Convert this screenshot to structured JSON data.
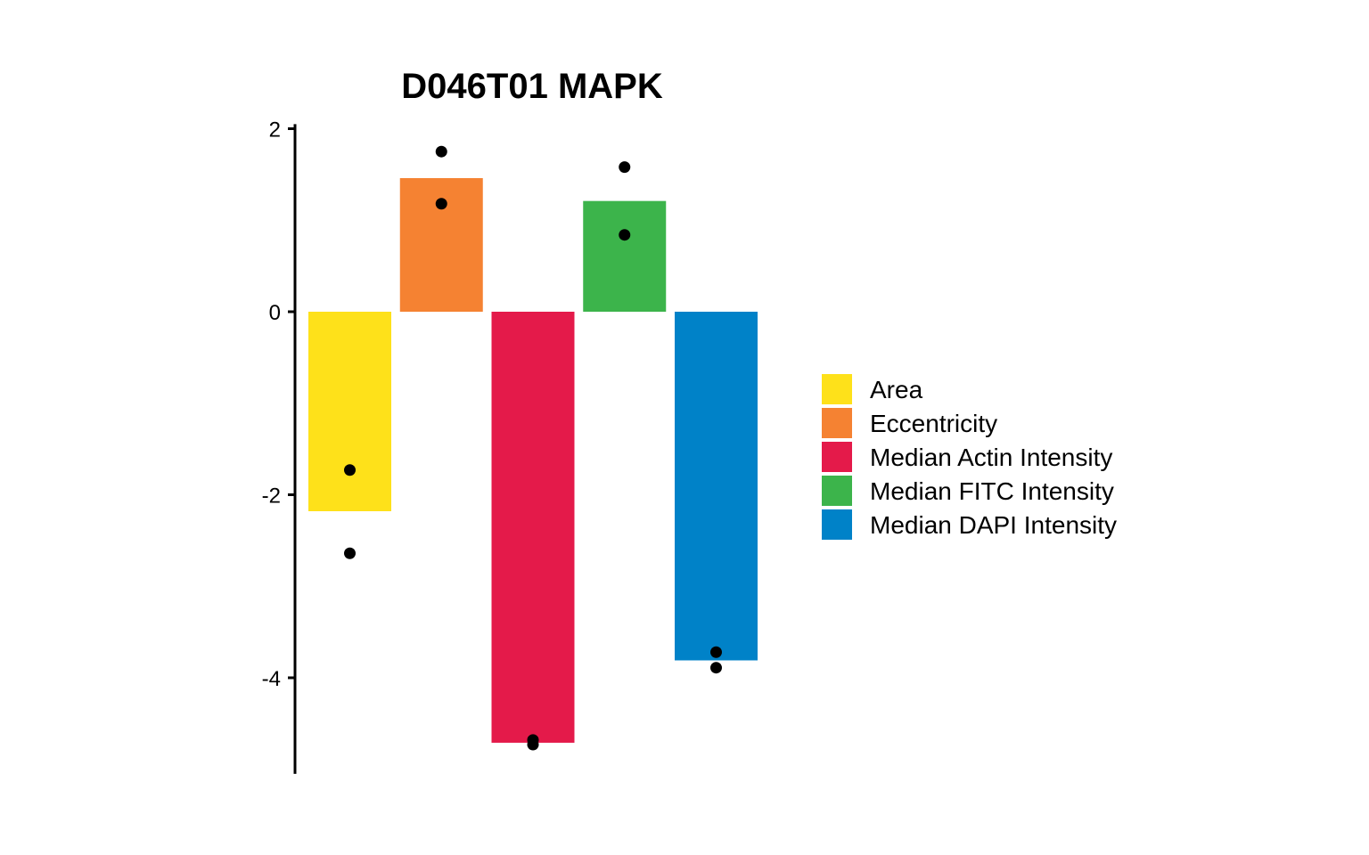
{
  "chart_data": {
    "type": "bar",
    "title": "D046T01 MAPK",
    "xlabel": "",
    "ylabel": "",
    "ylim": [
      -5.05,
      2.05
    ],
    "yticks": [
      2,
      0,
      -2,
      -4
    ],
    "ytick_labels": [
      "2",
      "0",
      "-2",
      "-4"
    ],
    "grid": false,
    "legend_position": "right",
    "categories": [
      "Area",
      "Eccentricity",
      "Median Actin Intensity",
      "Median FITC Intensity",
      "Median DAPI Intensity"
    ],
    "values": [
      -2.18,
      1.46,
      -4.71,
      1.21,
      -3.81
    ],
    "colors": [
      "#FEE11A",
      "#F58232",
      "#E41A4A",
      "#3CB44B",
      "#0082C8"
    ],
    "points": [
      [
        -1.73,
        -2.64
      ],
      [
        1.75,
        1.18
      ],
      [
        -4.68,
        -4.73
      ],
      [
        1.58,
        0.84
      ],
      [
        -3.72,
        -3.89
      ]
    ]
  }
}
